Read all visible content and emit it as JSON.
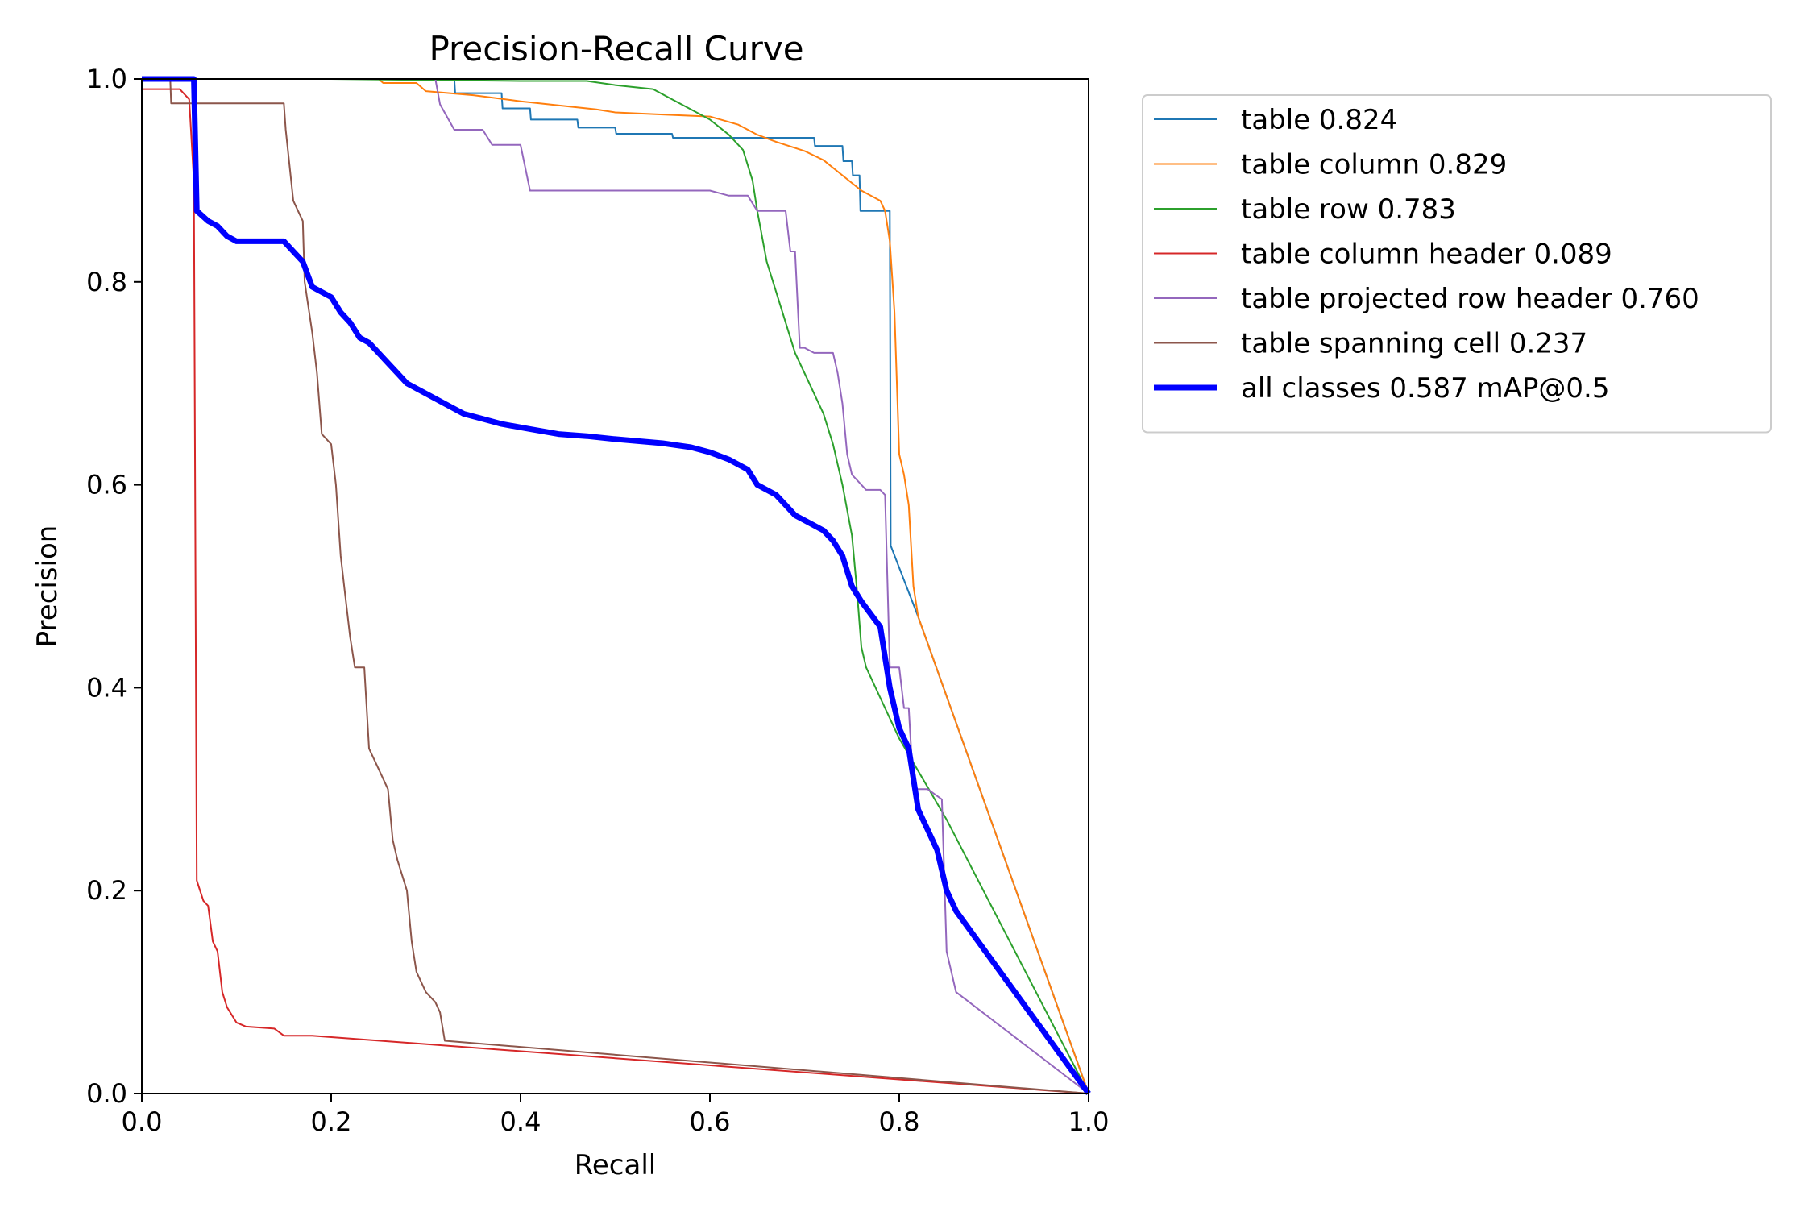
{
  "chart_data": {
    "type": "line",
    "title": "Precision-Recall Curve",
    "xlabel": "Recall",
    "ylabel": "Precision",
    "xlim": [
      0,
      1
    ],
    "ylim": [
      0,
      1
    ],
    "xticks": [
      "0.0",
      "0.2",
      "0.4",
      "0.6",
      "0.8",
      "1.0"
    ],
    "yticks": [
      "0.0",
      "0.2",
      "0.4",
      "0.6",
      "0.8",
      "1.0"
    ],
    "grid": false,
    "legend_position": "outside-top-right",
    "series": [
      {
        "name": "table 0.824",
        "color": "#1f77b4",
        "width": 2,
        "points": [
          [
            0,
            1
          ],
          [
            0.33,
            1
          ],
          [
            0.331,
            0.986
          ],
          [
            0.38,
            0.986
          ],
          [
            0.381,
            0.971
          ],
          [
            0.41,
            0.971
          ],
          [
            0.411,
            0.96
          ],
          [
            0.46,
            0.96
          ],
          [
            0.461,
            0.952
          ],
          [
            0.5,
            0.952
          ],
          [
            0.501,
            0.946
          ],
          [
            0.56,
            0.946
          ],
          [
            0.561,
            0.942
          ],
          [
            0.71,
            0.942
          ],
          [
            0.711,
            0.934
          ],
          [
            0.74,
            0.934
          ],
          [
            0.741,
            0.919
          ],
          [
            0.75,
            0.919
          ],
          [
            0.751,
            0.905
          ],
          [
            0.758,
            0.905
          ],
          [
            0.759,
            0.87
          ],
          [
            0.79,
            0.87
          ],
          [
            0.791,
            0.54
          ],
          [
            0.82,
            0.47
          ],
          [
            1.0,
            0
          ]
        ]
      },
      {
        "name": "table column 0.829",
        "color": "#ff7f0e",
        "width": 2,
        "points": [
          [
            0,
            1
          ],
          [
            0.25,
            1
          ],
          [
            0.255,
            0.996
          ],
          [
            0.29,
            0.996
          ],
          [
            0.3,
            0.988
          ],
          [
            0.35,
            0.984
          ],
          [
            0.4,
            0.978
          ],
          [
            0.44,
            0.974
          ],
          [
            0.48,
            0.97
          ],
          [
            0.5,
            0.967
          ],
          [
            0.55,
            0.965
          ],
          [
            0.6,
            0.963
          ],
          [
            0.63,
            0.955
          ],
          [
            0.65,
            0.945
          ],
          [
            0.67,
            0.938
          ],
          [
            0.69,
            0.932
          ],
          [
            0.7,
            0.929
          ],
          [
            0.72,
            0.92
          ],
          [
            0.74,
            0.905
          ],
          [
            0.76,
            0.89
          ],
          [
            0.78,
            0.88
          ],
          [
            0.785,
            0.87
          ],
          [
            0.79,
            0.84
          ],
          [
            0.795,
            0.77
          ],
          [
            0.8,
            0.63
          ],
          [
            0.805,
            0.61
          ],
          [
            0.81,
            0.58
          ],
          [
            0.815,
            0.5
          ],
          [
            0.82,
            0.47
          ],
          [
            1.0,
            0
          ]
        ]
      },
      {
        "name": "table row 0.783",
        "color": "#2ca02c",
        "width": 2,
        "points": [
          [
            0,
            1
          ],
          [
            0.2,
            1
          ],
          [
            0.3,
            0.999
          ],
          [
            0.4,
            0.998
          ],
          [
            0.47,
            0.998
          ],
          [
            0.5,
            0.994
          ],
          [
            0.54,
            0.99
          ],
          [
            0.56,
            0.98
          ],
          [
            0.58,
            0.97
          ],
          [
            0.6,
            0.96
          ],
          [
            0.62,
            0.945
          ],
          [
            0.635,
            0.93
          ],
          [
            0.645,
            0.9
          ],
          [
            0.65,
            0.87
          ],
          [
            0.66,
            0.82
          ],
          [
            0.67,
            0.79
          ],
          [
            0.68,
            0.76
          ],
          [
            0.69,
            0.73
          ],
          [
            0.7,
            0.71
          ],
          [
            0.71,
            0.69
          ],
          [
            0.72,
            0.67
          ],
          [
            0.73,
            0.64
          ],
          [
            0.74,
            0.6
          ],
          [
            0.75,
            0.55
          ],
          [
            0.755,
            0.5
          ],
          [
            0.76,
            0.44
          ],
          [
            0.765,
            0.42
          ],
          [
            0.77,
            0.41
          ],
          [
            0.78,
            0.39
          ],
          [
            0.8,
            0.35
          ],
          [
            0.85,
            0.27
          ],
          [
            1.0,
            0
          ]
        ]
      },
      {
        "name": "table column header 0.089",
        "color": "#d62728",
        "width": 2,
        "points": [
          [
            0,
            0.99
          ],
          [
            0.04,
            0.99
          ],
          [
            0.05,
            0.98
          ],
          [
            0.055,
            0.9
          ],
          [
            0.058,
            0.21
          ],
          [
            0.065,
            0.19
          ],
          [
            0.07,
            0.185
          ],
          [
            0.075,
            0.15
          ],
          [
            0.08,
            0.14
          ],
          [
            0.085,
            0.1
          ],
          [
            0.09,
            0.085
          ],
          [
            0.1,
            0.07
          ],
          [
            0.11,
            0.066
          ],
          [
            0.14,
            0.064
          ],
          [
            0.15,
            0.057
          ],
          [
            0.18,
            0.057
          ],
          [
            1.0,
            0
          ]
        ]
      },
      {
        "name": "table projected row header 0.760",
        "color": "#9467bd",
        "width": 2,
        "points": [
          [
            0,
            1
          ],
          [
            0.31,
            1
          ],
          [
            0.315,
            0.975
          ],
          [
            0.33,
            0.95
          ],
          [
            0.36,
            0.95
          ],
          [
            0.37,
            0.935
          ],
          [
            0.4,
            0.935
          ],
          [
            0.41,
            0.89
          ],
          [
            0.5,
            0.89
          ],
          [
            0.6,
            0.89
          ],
          [
            0.62,
            0.885
          ],
          [
            0.64,
            0.885
          ],
          [
            0.65,
            0.87
          ],
          [
            0.68,
            0.87
          ],
          [
            0.685,
            0.83
          ],
          [
            0.69,
            0.83
          ],
          [
            0.695,
            0.735
          ],
          [
            0.7,
            0.735
          ],
          [
            0.71,
            0.73
          ],
          [
            0.73,
            0.73
          ],
          [
            0.735,
            0.71
          ],
          [
            0.74,
            0.68
          ],
          [
            0.745,
            0.63
          ],
          [
            0.75,
            0.61
          ],
          [
            0.76,
            0.6
          ],
          [
            0.765,
            0.595
          ],
          [
            0.78,
            0.595
          ],
          [
            0.785,
            0.59
          ],
          [
            0.79,
            0.42
          ],
          [
            0.8,
            0.42
          ],
          [
            0.805,
            0.38
          ],
          [
            0.81,
            0.38
          ],
          [
            0.815,
            0.3
          ],
          [
            0.83,
            0.3
          ],
          [
            0.845,
            0.29
          ],
          [
            0.85,
            0.14
          ],
          [
            0.86,
            0.1
          ],
          [
            1.0,
            0
          ]
        ]
      },
      {
        "name": "table spanning cell 0.237",
        "color": "#8c564b",
        "width": 2,
        "points": [
          [
            0,
            1
          ],
          [
            0.03,
            1
          ],
          [
            0.031,
            0.976
          ],
          [
            0.06,
            0.976
          ],
          [
            0.12,
            0.976
          ],
          [
            0.15,
            0.976
          ],
          [
            0.152,
            0.95
          ],
          [
            0.16,
            0.88
          ],
          [
            0.17,
            0.86
          ],
          [
            0.172,
            0.8
          ],
          [
            0.18,
            0.75
          ],
          [
            0.185,
            0.71
          ],
          [
            0.19,
            0.65
          ],
          [
            0.2,
            0.64
          ],
          [
            0.205,
            0.6
          ],
          [
            0.21,
            0.53
          ],
          [
            0.215,
            0.49
          ],
          [
            0.22,
            0.45
          ],
          [
            0.225,
            0.42
          ],
          [
            0.235,
            0.42
          ],
          [
            0.24,
            0.34
          ],
          [
            0.25,
            0.32
          ],
          [
            0.26,
            0.3
          ],
          [
            0.265,
            0.25
          ],
          [
            0.27,
            0.23
          ],
          [
            0.28,
            0.2
          ],
          [
            0.285,
            0.15
          ],
          [
            0.29,
            0.12
          ],
          [
            0.3,
            0.1
          ],
          [
            0.31,
            0.09
          ],
          [
            0.315,
            0.08
          ],
          [
            0.32,
            0.052
          ],
          [
            1.0,
            0
          ]
        ]
      },
      {
        "name": "all classes 0.587 mAP@0.5",
        "color": "#0000ff",
        "width": 7,
        "points": [
          [
            0,
            1
          ],
          [
            0.055,
            1
          ],
          [
            0.058,
            0.87
          ],
          [
            0.07,
            0.86
          ],
          [
            0.08,
            0.855
          ],
          [
            0.09,
            0.845
          ],
          [
            0.1,
            0.84
          ],
          [
            0.12,
            0.84
          ],
          [
            0.15,
            0.84
          ],
          [
            0.16,
            0.83
          ],
          [
            0.17,
            0.82
          ],
          [
            0.18,
            0.795
          ],
          [
            0.2,
            0.785
          ],
          [
            0.21,
            0.77
          ],
          [
            0.22,
            0.76
          ],
          [
            0.23,
            0.745
          ],
          [
            0.24,
            0.74
          ],
          [
            0.25,
            0.73
          ],
          [
            0.26,
            0.72
          ],
          [
            0.27,
            0.71
          ],
          [
            0.28,
            0.7
          ],
          [
            0.3,
            0.69
          ],
          [
            0.32,
            0.68
          ],
          [
            0.34,
            0.67
          ],
          [
            0.36,
            0.665
          ],
          [
            0.38,
            0.66
          ],
          [
            0.41,
            0.655
          ],
          [
            0.44,
            0.65
          ],
          [
            0.47,
            0.648
          ],
          [
            0.5,
            0.645
          ],
          [
            0.55,
            0.641
          ],
          [
            0.58,
            0.637
          ],
          [
            0.6,
            0.632
          ],
          [
            0.62,
            0.625
          ],
          [
            0.64,
            0.615
          ],
          [
            0.65,
            0.6
          ],
          [
            0.67,
            0.59
          ],
          [
            0.68,
            0.58
          ],
          [
            0.69,
            0.57
          ],
          [
            0.7,
            0.565
          ],
          [
            0.72,
            0.555
          ],
          [
            0.73,
            0.545
          ],
          [
            0.74,
            0.53
          ],
          [
            0.75,
            0.5
          ],
          [
            0.76,
            0.485
          ],
          [
            0.78,
            0.46
          ],
          [
            0.79,
            0.4
          ],
          [
            0.8,
            0.36
          ],
          [
            0.81,
            0.34
          ],
          [
            0.82,
            0.28
          ],
          [
            0.83,
            0.26
          ],
          [
            0.84,
            0.24
          ],
          [
            0.85,
            0.2
          ],
          [
            0.86,
            0.18
          ],
          [
            1.0,
            0
          ]
        ]
      }
    ]
  }
}
